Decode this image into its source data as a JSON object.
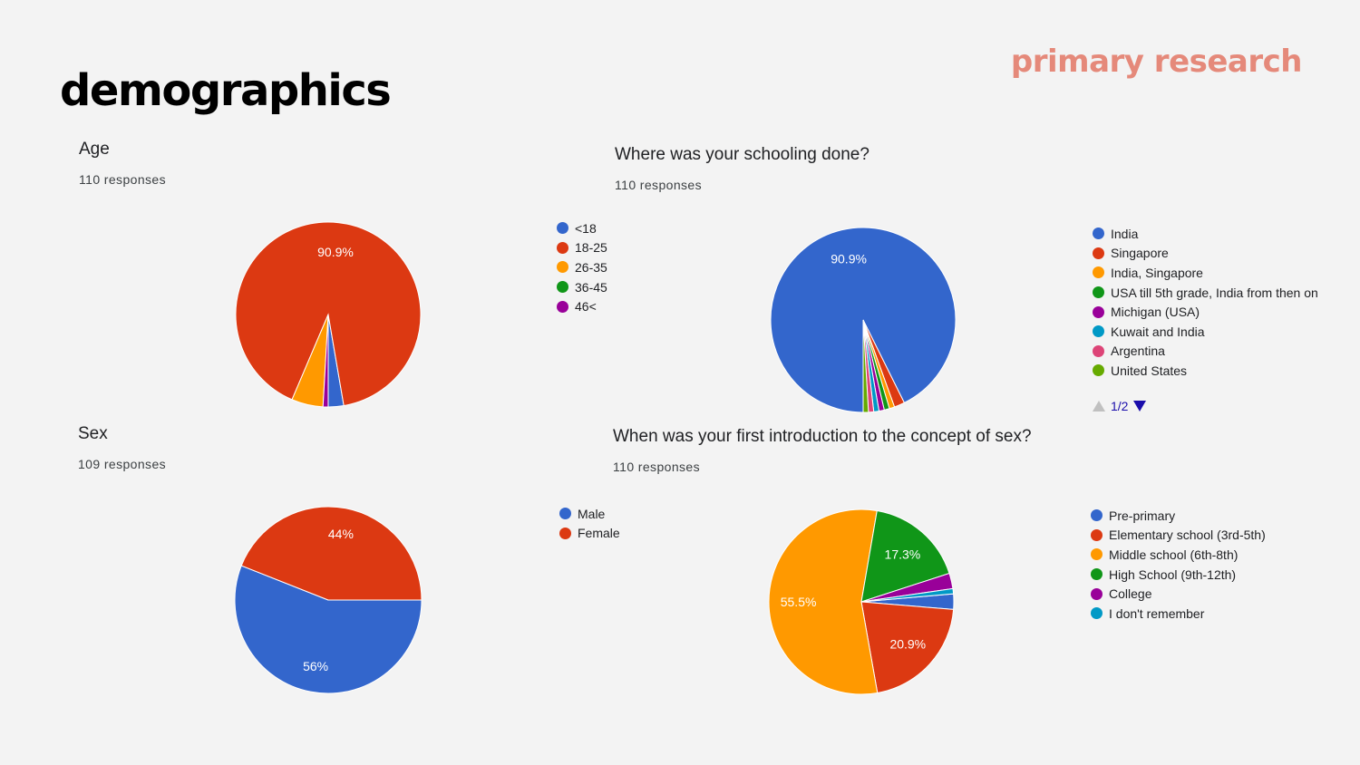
{
  "slide": {
    "title": "demographics",
    "corner_label": "primary research"
  },
  "chart_data": [
    {
      "id": "age",
      "type": "pie",
      "title": "Age",
      "subtitle": "110 responses",
      "categories": [
        "<18",
        "18-25",
        "26-35",
        "36-45",
        "46<"
      ],
      "values": [
        2.7,
        90.9,
        5.5,
        0.0,
        0.9
      ],
      "colors": [
        "#3366cc",
        "#dc3912",
        "#ff9900",
        "#109618",
        "#990099"
      ],
      "slice_labels": [
        "",
        "90.9%",
        "",
        "",
        ""
      ]
    },
    {
      "id": "schooling",
      "type": "pie",
      "title": "Where was your schooling done?",
      "subtitle": "110 responses",
      "categories": [
        "India",
        "Singapore",
        "India, Singapore",
        "USA till 5th grade, India from then on",
        "Michigan (USA)",
        "Kuwait and India",
        "Argentina",
        "United States"
      ],
      "values": [
        90.9,
        1.8,
        0.9,
        0.9,
        0.9,
        0.9,
        0.9,
        0.9
      ],
      "colors": [
        "#3366cc",
        "#dc3912",
        "#ff9900",
        "#109618",
        "#990099",
        "#0099c6",
        "#dd4477",
        "#66aa00"
      ],
      "slice_labels": [
        "90.9%",
        "",
        "",
        "",
        "",
        "",
        "",
        ""
      ],
      "pager": "1/2"
    },
    {
      "id": "sex",
      "type": "pie",
      "title": "Sex",
      "subtitle": "109 responses",
      "categories": [
        "Male",
        "Female"
      ],
      "values": [
        56,
        44
      ],
      "colors": [
        "#3366cc",
        "#dc3912"
      ],
      "slice_labels": [
        "56%",
        "44%"
      ]
    },
    {
      "id": "intro",
      "type": "pie",
      "title": "When was your first introduction to the concept of sex?",
      "subtitle": "110 responses",
      "categories": [
        "Pre-primary",
        "Elementary school (3rd-5th)",
        "Middle school (6th-8th)",
        "High School (9th-12th)",
        "College",
        "I don't remember"
      ],
      "values": [
        2.7,
        20.9,
        55.5,
        17.3,
        2.7,
        0.9
      ],
      "colors": [
        "#3366cc",
        "#dc3912",
        "#ff9900",
        "#109618",
        "#990099",
        "#0099c6"
      ],
      "slice_labels": [
        "",
        "20.9%",
        "55.5%",
        "17.3%",
        "",
        ""
      ]
    }
  ]
}
